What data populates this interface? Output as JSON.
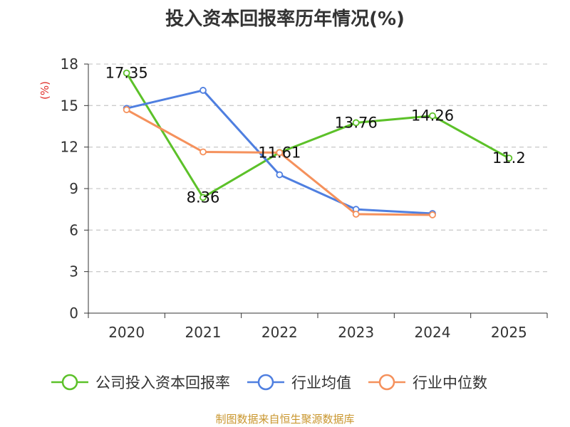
{
  "chart_data": {
    "type": "line",
    "title": "投入资本回报率历年情况(%)",
    "ylabel": "(%)",
    "xlabel": "",
    "categories": [
      "2020",
      "2021",
      "2022",
      "2023",
      "2024",
      "2025"
    ],
    "ylim": [
      0,
      18
    ],
    "yticks": [
      0,
      3,
      6,
      9,
      12,
      15,
      18
    ],
    "grid": true,
    "legend_position": "bottom",
    "series": [
      {
        "name": "公司投入资本回报率",
        "color": "#5cc129",
        "values": [
          17.35,
          8.36,
          11.61,
          13.76,
          14.26,
          11.2
        ],
        "labels": [
          "17.35",
          "8.36",
          "11.61",
          "13.76",
          "14.26",
          "11.2"
        ]
      },
      {
        "name": "行业均值",
        "color": "#4f7fe0",
        "values": [
          14.8,
          16.1,
          10.0,
          7.5,
          7.2,
          null
        ]
      },
      {
        "name": "行业中位数",
        "color": "#f5915c",
        "values": [
          14.7,
          11.65,
          11.6,
          7.15,
          7.1,
          null
        ]
      }
    ],
    "source": "制图数据来自恒生聚源数据库"
  }
}
